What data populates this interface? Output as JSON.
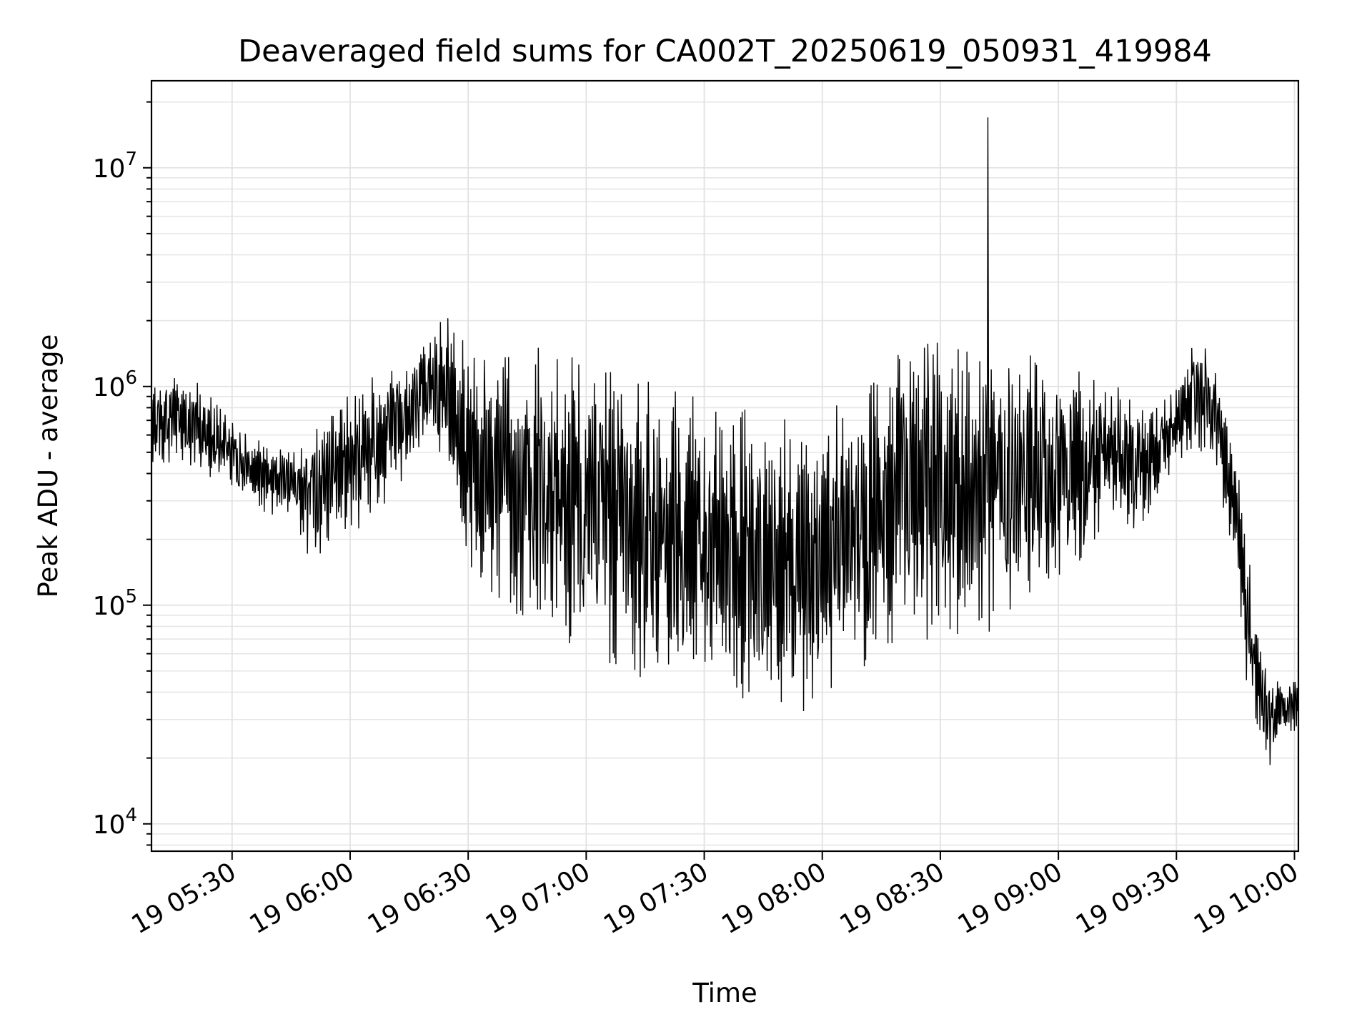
{
  "chart_data": {
    "type": "line",
    "title": "Deaveraged field sums for CA002T_20250619_050931_419984",
    "xlabel": "Time",
    "ylabel": "Peak ADU - average",
    "x_scale": "time",
    "y_scale": "log",
    "xlim": [
      "2025-06-19 05:09:31",
      "2025-06-19 10:01:00"
    ],
    "ylim": [
      7500,
      25000000
    ],
    "x_ticks": [
      {
        "time": "2025-06-19 05:30",
        "label": "19 05:30"
      },
      {
        "time": "2025-06-19 06:00",
        "label": "19 06:00"
      },
      {
        "time": "2025-06-19 06:30",
        "label": "19 06:30"
      },
      {
        "time": "2025-06-19 07:00",
        "label": "19 07:00"
      },
      {
        "time": "2025-06-19 07:30",
        "label": "19 07:30"
      },
      {
        "time": "2025-06-19 08:00",
        "label": "19 08:00"
      },
      {
        "time": "2025-06-19 08:30",
        "label": "19 08:30"
      },
      {
        "time": "2025-06-19 09:00",
        "label": "19 09:00"
      },
      {
        "time": "2025-06-19 09:30",
        "label": "19 09:30"
      },
      {
        "time": "2025-06-19 10:00",
        "label": "19 10:00"
      }
    ],
    "y_ticks": [
      {
        "value": 10000,
        "base": "10",
        "exp": "4"
      },
      {
        "value": 100000,
        "base": "10",
        "exp": "5"
      },
      {
        "value": 1000000,
        "base": "10",
        "exp": "6"
      },
      {
        "value": 10000000,
        "base": "10",
        "exp": "7"
      }
    ],
    "grid": true,
    "line_color": "#000000",
    "series": [
      {
        "x": [
          "2025-06-19 05:10",
          "2025-06-19 05:15",
          "2025-06-19 05:20",
          "2025-06-19 05:25",
          "2025-06-19 05:30",
          "2025-06-19 05:35",
          "2025-06-19 05:40",
          "2025-06-19 05:45",
          "2025-06-19 05:50",
          "2025-06-19 05:55",
          "2025-06-19 06:00",
          "2025-06-19 06:05",
          "2025-06-19 06:10",
          "2025-06-19 06:15",
          "2025-06-19 06:20",
          "2025-06-19 06:25",
          "2025-06-19 06:30",
          "2025-06-19 06:35",
          "2025-06-19 06:40",
          "2025-06-19 06:45",
          "2025-06-19 06:50",
          "2025-06-19 06:55",
          "2025-06-19 07:00",
          "2025-06-19 07:05",
          "2025-06-19 07:10",
          "2025-06-19 07:15",
          "2025-06-19 07:20",
          "2025-06-19 07:25",
          "2025-06-19 07:30",
          "2025-06-19 07:35",
          "2025-06-19 07:40",
          "2025-06-19 07:45",
          "2025-06-19 07:50",
          "2025-06-19 07:55",
          "2025-06-19 08:00",
          "2025-06-19 08:05",
          "2025-06-19 08:10",
          "2025-06-19 08:15",
          "2025-06-19 08:20",
          "2025-06-19 08:25",
          "2025-06-19 08:30",
          "2025-06-19 08:35",
          "2025-06-19 08:40",
          "2025-06-19 08:45",
          "2025-06-19 08:50",
          "2025-06-19 08:55",
          "2025-06-19 09:00",
          "2025-06-19 09:05",
          "2025-06-19 09:10",
          "2025-06-19 09:15",
          "2025-06-19 09:20",
          "2025-06-19 09:25",
          "2025-06-19 09:30",
          "2025-06-19 09:35",
          "2025-06-19 09:40",
          "2025-06-19 09:45",
          "2025-06-19 09:48",
          "2025-06-19 09:51",
          "2025-06-19 09:54",
          "2025-06-19 09:57",
          "2025-06-19 10:00"
        ],
        "upper": [
          1000000,
          1200000,
          1100000,
          900000,
          700000,
          600000,
          550000,
          500000,
          600000,
          800000,
          1000000,
          1100000,
          1200000,
          1400000,
          1900000,
          2100000,
          1500000,
          1400000,
          1500000,
          1600000,
          1500000,
          1500000,
          1400000,
          1300000,
          1200000,
          1100000,
          1000000,
          950000,
          950000,
          900000,
          850000,
          800000,
          800000,
          800000,
          800000,
          900000,
          1200000,
          1400000,
          1500000,
          1600000,
          1700000,
          1700000,
          1600000,
          1500000,
          1500000,
          1400000,
          1300000,
          1200000,
          1100000,
          1000000,
          900000,
          800000,
          1000000,
          1800000,
          1300000,
          500000,
          200000,
          80000,
          50000,
          45000,
          45000
        ],
        "lower": [
          400000,
          450000,
          420000,
          380000,
          320000,
          280000,
          260000,
          250000,
          150000,
          200000,
          200000,
          250000,
          300000,
          350000,
          500000,
          450000,
          130000,
          110000,
          90000,
          80000,
          70000,
          65000,
          60000,
          55000,
          50000,
          45000,
          42000,
          40000,
          38000,
          36000,
          34000,
          32000,
          32000,
          32000,
          38000,
          45000,
          50000,
          55000,
          60000,
          62000,
          65000,
          68000,
          70000,
          80000,
          100000,
          120000,
          130000,
          140000,
          200000,
          250000,
          200000,
          300000,
          450000,
          500000,
          400000,
          150000,
          40000,
          20000,
          18000,
          28000,
          25000
        ],
        "spike": {
          "x": "2025-06-19 08:42",
          "y": 17000000
        }
      }
    ]
  }
}
